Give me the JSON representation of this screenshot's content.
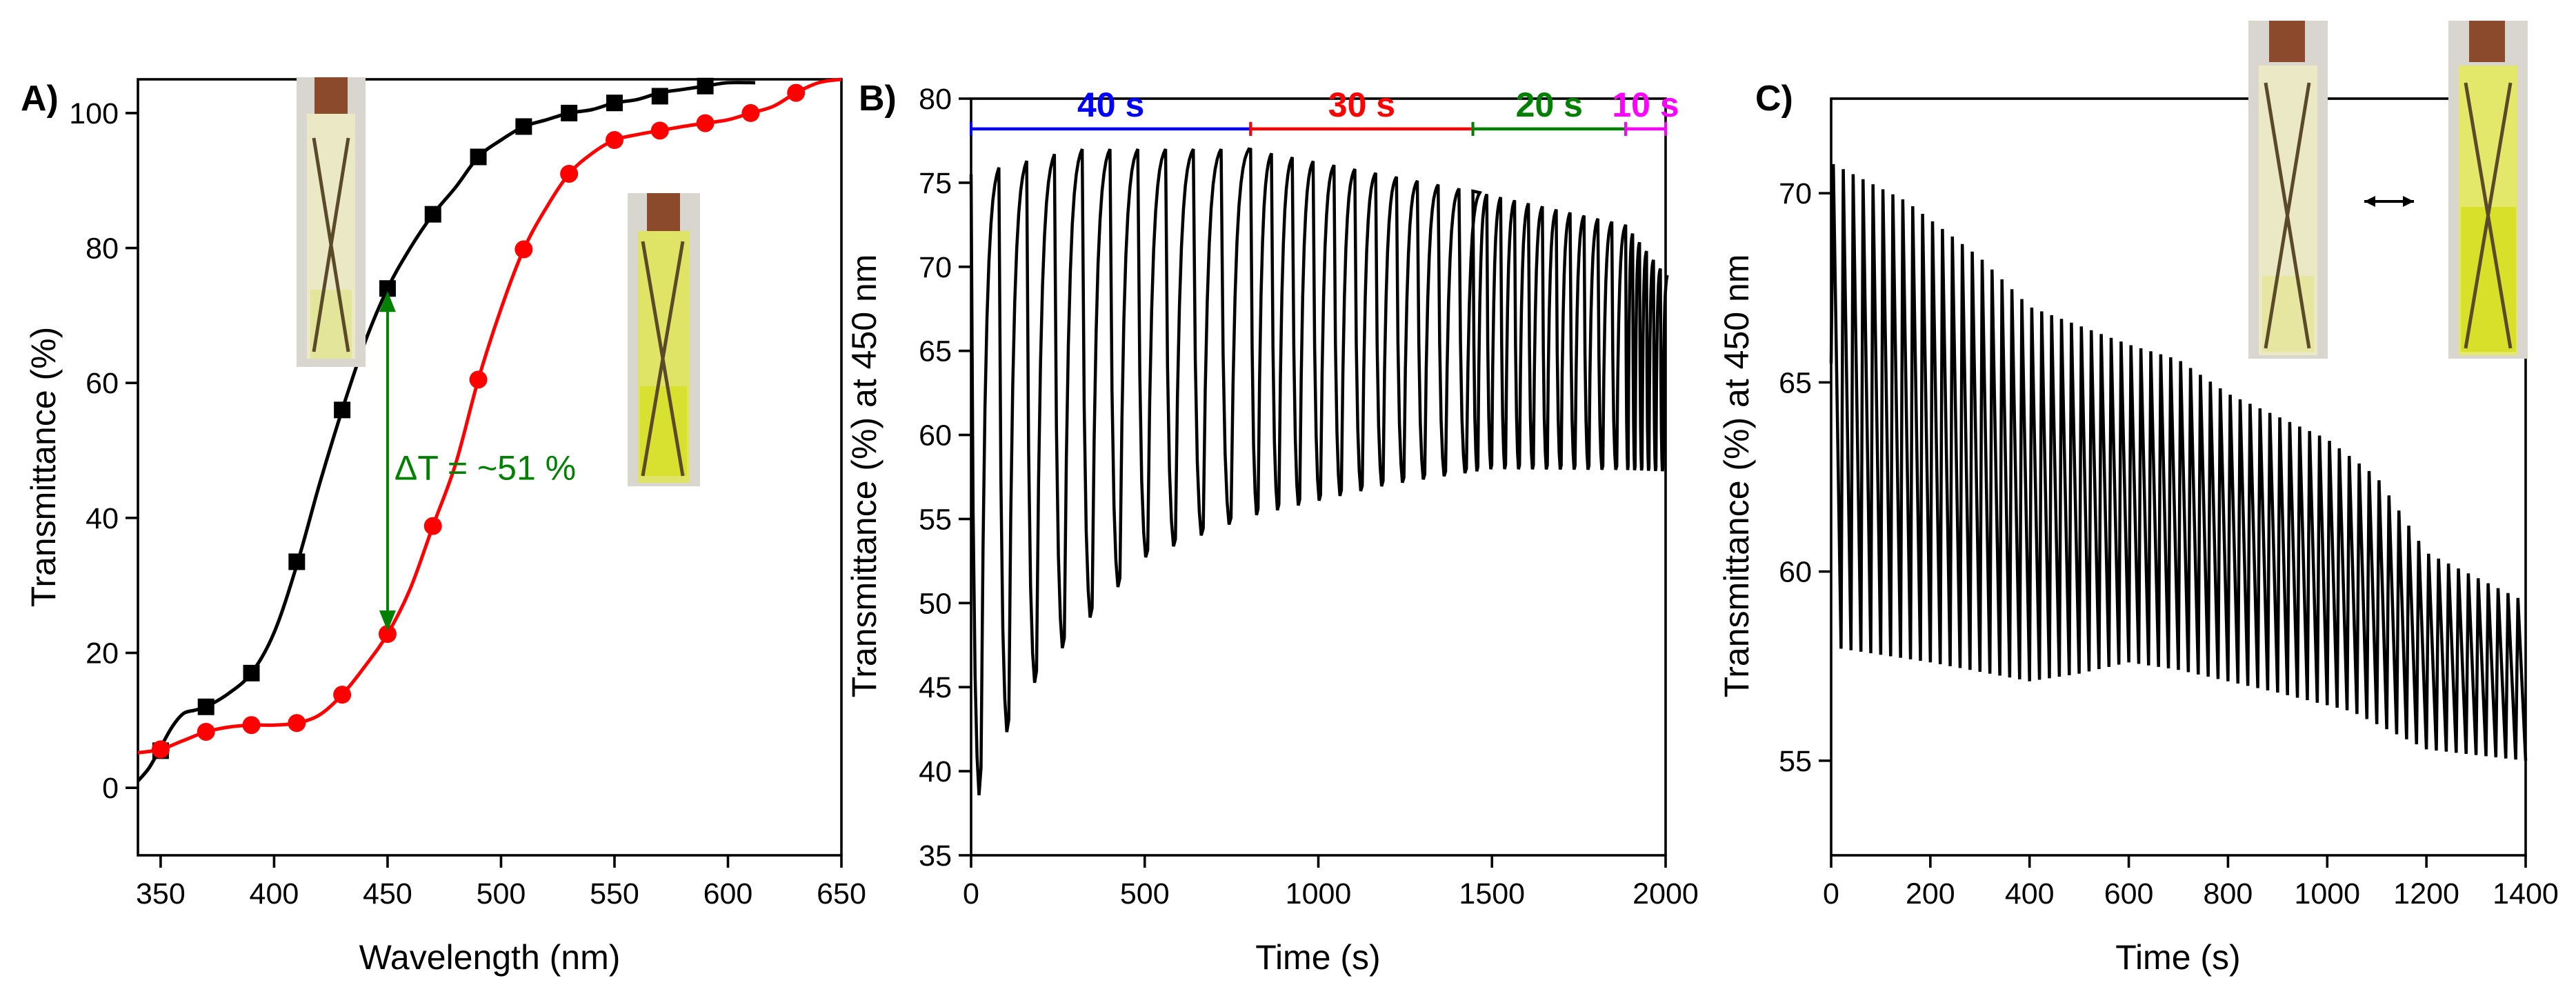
{
  "colors": {
    "black": "#000000",
    "red": "#ff0000",
    "green": "#008000",
    "blue": "#0000ff",
    "magenta": "#ff00ff"
  },
  "chart_data": [
    {
      "panel": "A)",
      "type": "line",
      "xlabel": "Wavelength (nm)",
      "ylabel": "Transmittance (%)",
      "xlim": [
        340,
        650
      ],
      "ylim": [
        -10,
        105
      ],
      "xticks": [
        350,
        400,
        450,
        500,
        550,
        600,
        650
      ],
      "yticks": [
        0,
        20,
        40,
        60,
        80,
        100
      ],
      "series": [
        {
          "color": "black",
          "marker": "square",
          "curve_x": [
            340,
            345,
            350,
            355,
            360,
            365,
            370,
            380,
            390,
            400,
            410,
            420,
            430,
            440,
            450,
            460,
            470,
            480,
            490,
            500,
            510,
            520,
            530,
            540,
            550,
            560,
            570,
            580,
            590,
            600,
            612
          ],
          "curve_y": [
            1,
            3,
            6,
            9,
            11,
            11.5,
            12,
            14,
            17,
            23,
            33,
            45,
            56,
            66,
            74,
            80,
            85,
            89,
            93.5,
            96,
            98,
            99,
            100,
            100.5,
            101.5,
            102,
            103,
            103.5,
            104,
            104.5,
            104.5
          ],
          "marker_x": [
            350,
            370,
            390,
            410,
            430,
            450,
            470,
            490,
            510,
            530,
            550,
            570,
            590
          ],
          "marker_y": [
            5.5,
            12,
            17,
            33.5,
            56,
            74,
            85,
            93.5,
            98,
            100,
            101.5,
            102.5,
            104
          ]
        },
        {
          "color": "red",
          "marker": "circle",
          "curve_x": [
            340,
            350,
            360,
            370,
            380,
            390,
            400,
            410,
            420,
            430,
            440,
            450,
            460,
            470,
            480,
            490,
            500,
            510,
            520,
            530,
            540,
            550,
            560,
            570,
            580,
            590,
            600,
            610,
            620,
            630,
            640,
            650
          ],
          "curve_y": [
            5.2,
            5.7,
            7,
            8.3,
            9,
            9.3,
            9.3,
            9.6,
            10.8,
            13.8,
            18,
            22.8,
            29.5,
            38.8,
            48,
            60.5,
            71,
            79.8,
            86,
            91,
            94,
            96,
            96.8,
            97.4,
            98,
            98.5,
            99,
            100,
            101,
            103,
            104.5,
            105
          ],
          "marker_x": [
            350,
            370,
            390,
            410,
            430,
            450,
            470,
            490,
            510,
            530,
            550,
            570,
            590,
            610,
            630
          ],
          "marker_y": [
            5.7,
            8.3,
            9.3,
            9.6,
            13.8,
            22.8,
            38.8,
            60.5,
            79.8,
            91,
            96,
            97.4,
            98.5,
            100,
            103
          ]
        }
      ],
      "annotations": [
        {
          "text": "ΔT = ~51 %",
          "color": "green",
          "arrow_x": 450,
          "arrow_from": 74,
          "arrow_to": 22.8
        }
      ]
    },
    {
      "panel": "B)",
      "type": "line",
      "xlabel": "Time (s)",
      "ylabel": "Transmittance (%) at 450 nm",
      "xlim": [
        0,
        2000
      ],
      "ylim": [
        35,
        80
      ],
      "xticks": [
        0,
        500,
        1000,
        1500,
        2000
      ],
      "yticks": [
        35,
        40,
        45,
        50,
        55,
        60,
        65,
        70,
        75,
        80
      ],
      "segments": [
        {
          "label": "40 s",
          "color": "blue",
          "start": 0,
          "end": 805,
          "period": 80
        },
        {
          "label": "30 s",
          "color": "red",
          "start": 805,
          "end": 1445,
          "period": 60
        },
        {
          "label": "20 s",
          "color": "green",
          "start": 1445,
          "end": 1885,
          "period": 40
        },
        {
          "label": "10 s",
          "color": "magenta",
          "start": 1885,
          "end": 2000,
          "period": 20
        }
      ],
      "bracket_y": 78.2,
      "cycle_max": [
        {
          "x": 0,
          "y": 75.5
        },
        {
          "x": 300,
          "y": 77
        },
        {
          "x": 800,
          "y": 77
        },
        {
          "x": 1445,
          "y": 74.5
        },
        {
          "x": 1885,
          "y": 72.5
        },
        {
          "x": 2000,
          "y": 69.5
        }
      ],
      "cycle_min": [
        {
          "x": 0,
          "y": 37.5
        },
        {
          "x": 200,
          "y": 45
        },
        {
          "x": 500,
          "y": 52
        },
        {
          "x": 800,
          "y": 54.5
        },
        {
          "x": 1200,
          "y": 56.5
        },
        {
          "x": 1500,
          "y": 57.5
        },
        {
          "x": 2000,
          "y": 57.5
        }
      ]
    },
    {
      "panel": "C)",
      "type": "line",
      "xlabel": "Time (s)",
      "ylabel": "Transmittance (%) at 450 nm",
      "xlim": [
        0,
        1400
      ],
      "ylim": [
        52.5,
        72.5
      ],
      "xticks": [
        0,
        200,
        400,
        600,
        800,
        1000,
        1200,
        1400
      ],
      "yticks": [
        55,
        60,
        65,
        70
      ],
      "period": 20,
      "cycle_max": [
        {
          "x": 0,
          "y": 70.8
        },
        {
          "x": 150,
          "y": 69.8
        },
        {
          "x": 300,
          "y": 68.3
        },
        {
          "x": 400,
          "y": 67
        },
        {
          "x": 600,
          "y": 66
        },
        {
          "x": 700,
          "y": 65.6
        },
        {
          "x": 800,
          "y": 64.7
        },
        {
          "x": 1000,
          "y": 63.5
        },
        {
          "x": 1100,
          "y": 62.5
        },
        {
          "x": 1200,
          "y": 60.5
        },
        {
          "x": 1400,
          "y": 59.2
        }
      ],
      "cycle_min": [
        {
          "x": 0,
          "y": 58
        },
        {
          "x": 200,
          "y": 57.6
        },
        {
          "x": 400,
          "y": 57.1
        },
        {
          "x": 500,
          "y": 57.3
        },
        {
          "x": 600,
          "y": 57.6
        },
        {
          "x": 700,
          "y": 57.4
        },
        {
          "x": 900,
          "y": 56.8
        },
        {
          "x": 1050,
          "y": 56.3
        },
        {
          "x": 1200,
          "y": 55.3
        },
        {
          "x": 1400,
          "y": 55.0
        }
      ]
    }
  ]
}
